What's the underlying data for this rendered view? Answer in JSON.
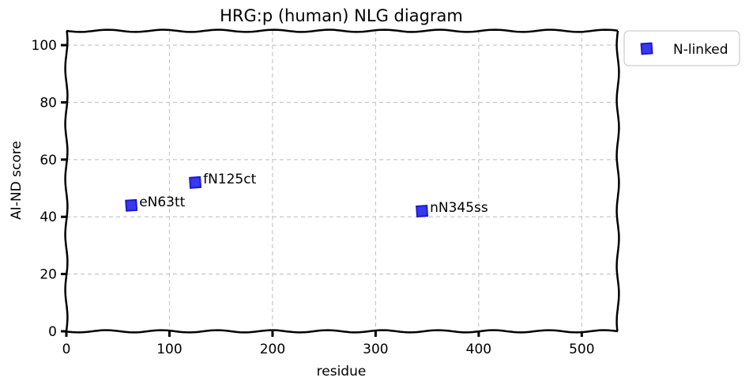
{
  "chart_data": {
    "type": "scatter",
    "title": "HRG:p (human) NLG diagram",
    "xlabel": "residue",
    "ylabel": "AI-ND score",
    "xlim": [
      0,
      535
    ],
    "ylim": [
      0,
      105
    ],
    "xticks": [
      0,
      100,
      200,
      300,
      400,
      500
    ],
    "yticks": [
      0,
      20,
      40,
      60,
      80,
      100
    ],
    "grid": true,
    "legend": {
      "placement": "outside-top-right"
    },
    "series": [
      {
        "name": "N-linked",
        "marker": "square",
        "color": "#2222ee",
        "points": [
          {
            "x": 63,
            "y": 44,
            "label": "eN63tt"
          },
          {
            "x": 125,
            "y": 52,
            "label": "fN125ct"
          },
          {
            "x": 345,
            "y": 42,
            "label": "nN345ss"
          }
        ]
      }
    ]
  }
}
